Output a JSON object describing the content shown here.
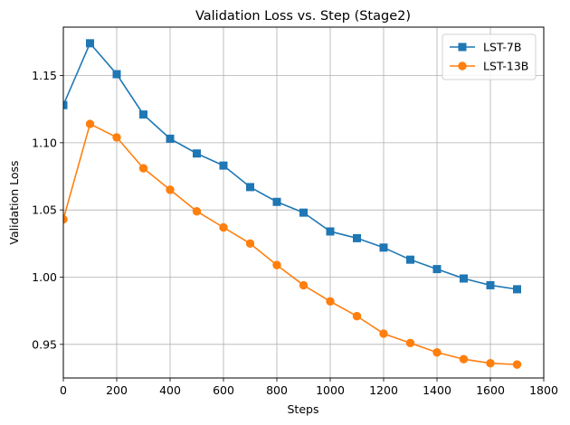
{
  "chart_data": {
    "type": "line",
    "title": "Validation Loss vs. Step (Stage2)",
    "xlabel": "Steps",
    "ylabel": "Validation Loss",
    "xlim": [
      0,
      1800
    ],
    "ylim": [
      0.925,
      1.186
    ],
    "grid": true,
    "legend_position": "top-right",
    "x": [
      0,
      100,
      200,
      300,
      400,
      500,
      600,
      700,
      800,
      900,
      1000,
      1100,
      1200,
      1300,
      1400,
      1500,
      1600,
      1700
    ],
    "xticks": [
      0,
      200,
      400,
      600,
      800,
      1000,
      1200,
      1400,
      1600,
      1800
    ],
    "xtick_labels": [
      "0",
      "200",
      "400",
      "600",
      "800",
      "1000",
      "1200",
      "1400",
      "1600",
      "1800"
    ],
    "yticks": [
      0.95,
      1.0,
      1.05,
      1.1,
      1.15
    ],
    "ytick_labels": [
      "0.95",
      "1.00",
      "1.05",
      "1.10",
      "1.15"
    ],
    "series": [
      {
        "name": "LST-7B",
        "color": "#1f77b4",
        "marker": "square",
        "values": [
          1.128,
          1.174,
          1.151,
          1.121,
          1.103,
          1.092,
          1.083,
          1.067,
          1.056,
          1.048,
          1.034,
          1.029,
          1.022,
          1.013,
          1.006,
          0.999,
          0.994,
          0.991
        ]
      },
      {
        "name": "LST-13B",
        "color": "#ff7f0e",
        "marker": "circle",
        "values": [
          1.043,
          1.114,
          1.104,
          1.081,
          1.065,
          1.049,
          1.037,
          1.025,
          1.009,
          0.994,
          0.982,
          0.971,
          0.958,
          0.951,
          0.944,
          0.939,
          0.936,
          0.935
        ]
      }
    ]
  }
}
